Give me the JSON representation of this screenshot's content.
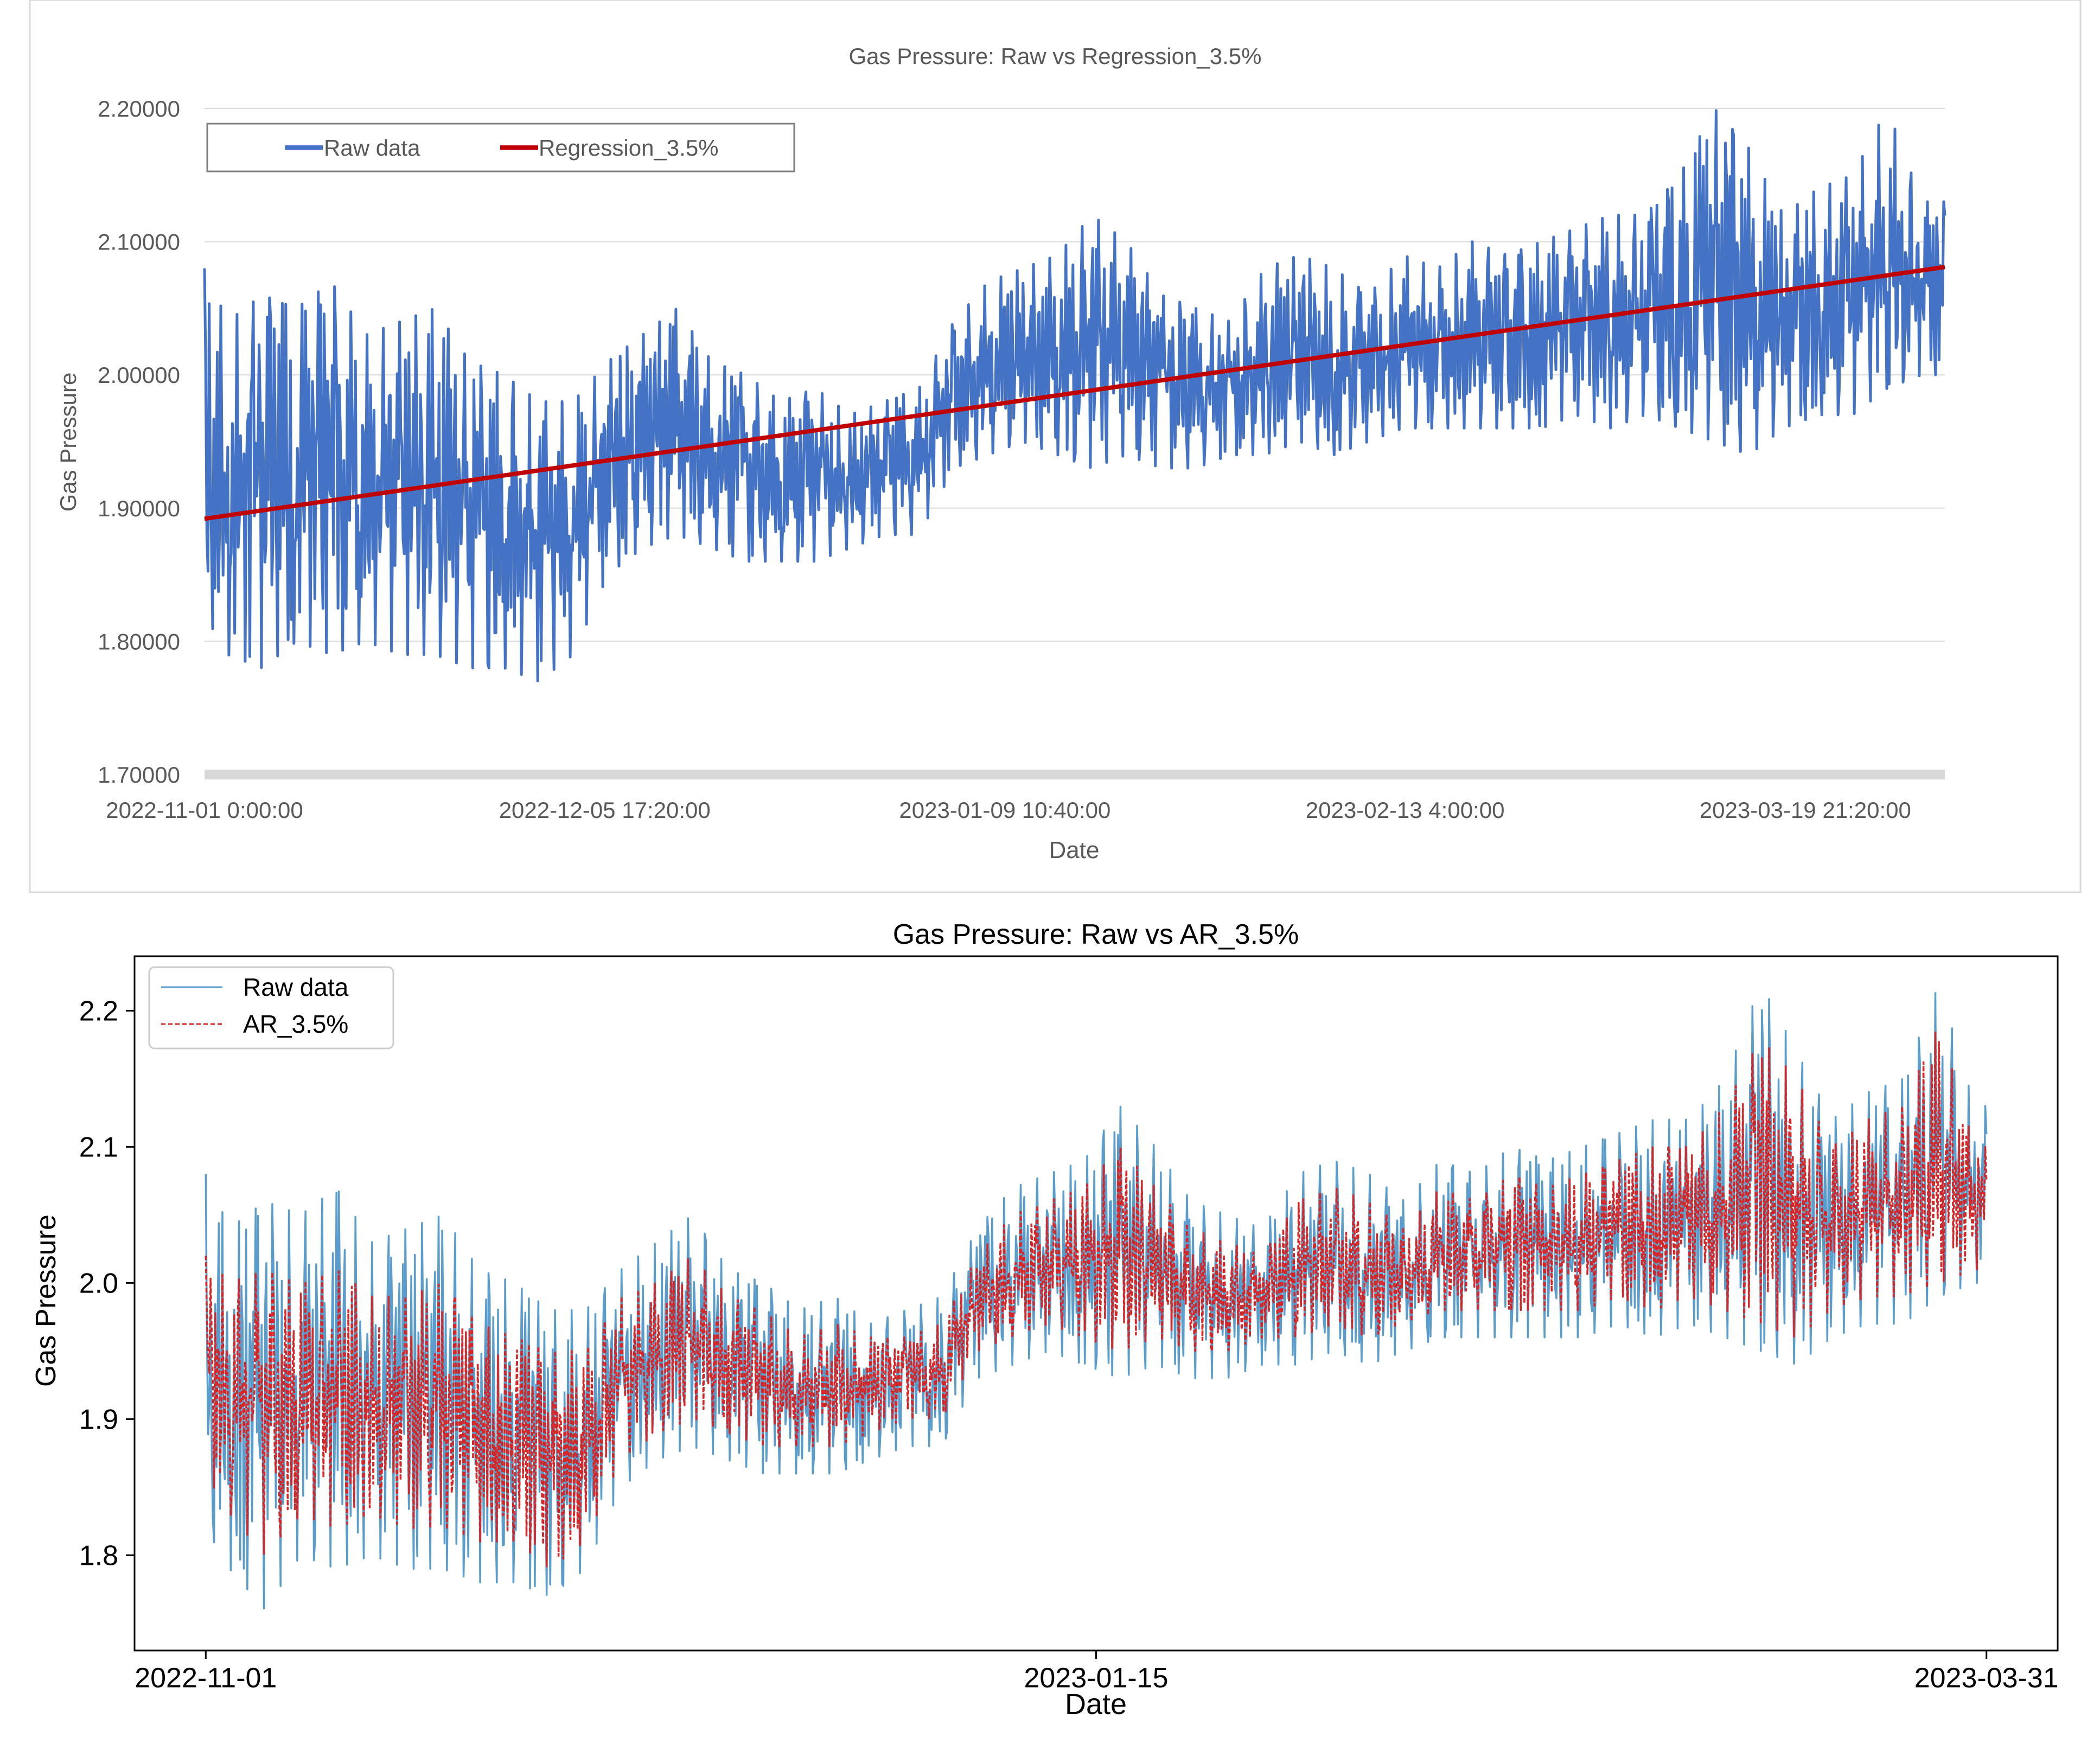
{
  "chart_data": [
    {
      "type": "line",
      "title": "Gas Pressure: Raw vs Regression_3.5%",
      "xlabel": "Date",
      "ylabel": "Gas Pressure",
      "ylim": [
        1.7,
        2.2
      ],
      "yticks": [
        "2.20000",
        "2.10000",
        "2.00000",
        "1.90000",
        "1.80000",
        "1.70000"
      ],
      "yticks_values": [
        2.2,
        2.1,
        2.0,
        1.9,
        1.8,
        1.7
      ],
      "xlim": [
        "2022-11-01 00:00",
        "2023-03-31 23:50"
      ],
      "xticks": [
        "2022-11-01 0:00:00",
        "2022-12-05 17:20:00",
        "2023-01-09 10:40:00",
        "2023-02-13 4:00:00",
        "2023-03-19 21:20:00"
      ],
      "xticks_values": [
        "2022-11-01 00:00",
        "2022-12-05 17:20",
        "2023-01-09 10:40",
        "2023-02-13 04:00",
        "2023-03-19 21:20"
      ],
      "grid": true,
      "legend": "top-left",
      "colors": {
        "raw": "#4472c4",
        "regression": "#c00000"
      },
      "series": [
        {
          "name": "Raw data",
          "x": [
            "2022-11-01",
            "2022-11-03",
            "2022-11-06",
            "2022-11-09",
            "2022-11-12",
            "2022-11-15",
            "2022-11-18",
            "2022-11-21",
            "2022-11-24",
            "2022-11-27",
            "2022-11-30",
            "2022-12-03",
            "2022-12-06",
            "2022-12-09",
            "2022-12-12",
            "2022-12-15",
            "2022-12-18",
            "2022-12-21",
            "2022-12-24",
            "2022-12-27",
            "2022-12-30",
            "2023-01-02",
            "2023-01-05",
            "2023-01-08",
            "2023-01-11",
            "2023-01-14",
            "2023-01-17",
            "2023-01-20",
            "2023-01-23",
            "2023-01-26",
            "2023-01-29",
            "2023-02-01",
            "2023-02-04",
            "2023-02-07",
            "2023-02-10",
            "2023-02-13",
            "2023-02-16",
            "2023-02-19",
            "2023-02-22",
            "2023-02-25",
            "2023-02-28",
            "2023-03-03",
            "2023-03-06",
            "2023-03-09",
            "2023-03-12",
            "2023-03-15",
            "2023-03-18",
            "2023-03-21",
            "2023-03-24",
            "2023-03-27",
            "2023-03-30"
          ],
          "upper": [
            2.08,
            2.04,
            2.06,
            2.05,
            2.07,
            2.03,
            2.04,
            2.05,
            2.01,
            2.0,
            1.98,
            1.98,
            2.01,
            2.03,
            2.05,
            2.01,
            2.0,
            1.98,
            1.99,
            1.97,
            1.98,
            1.99,
            2.04,
            2.07,
            2.08,
            2.09,
            2.12,
            2.1,
            2.06,
            2.05,
            2.04,
            2.08,
            2.09,
            2.08,
            2.06,
            2.09,
            2.08,
            2.1,
            2.09,
            2.1,
            2.11,
            2.12,
            2.12,
            2.15,
            2.2,
            2.17,
            2.12,
            2.14,
            2.15,
            2.2,
            2.13
          ],
          "lower": [
            1.82,
            1.79,
            1.78,
            1.8,
            1.79,
            1.8,
            1.79,
            1.79,
            1.78,
            1.78,
            1.77,
            1.79,
            1.85,
            1.87,
            1.88,
            1.87,
            1.86,
            1.86,
            1.86,
            1.87,
            1.88,
            1.88,
            1.93,
            1.94,
            1.95,
            1.94,
            1.93,
            1.94,
            1.93,
            1.93,
            1.94,
            1.94,
            1.95,
            1.94,
            1.95,
            1.96,
            1.96,
            1.96,
            1.96,
            1.96,
            1.97,
            1.96,
            1.97,
            1.96,
            1.95,
            1.94,
            1.96,
            1.97,
            1.97,
            1.99,
            2.0
          ]
        },
        {
          "name": "Regression_3.5%",
          "x": [
            "2022-11-01 00:00",
            "2023-03-31 23:50"
          ],
          "values": [
            1.892,
            2.081
          ]
        }
      ]
    },
    {
      "type": "line",
      "title": "Gas Pressure: Raw vs AR_3.5%",
      "xlabel": "Date",
      "ylabel": "Gas Pressure",
      "ylim": [
        1.73,
        2.24
      ],
      "yticks": [
        "2.2",
        "2.1",
        "2.0",
        "1.9",
        "1.8"
      ],
      "yticks_values": [
        2.2,
        2.1,
        2.0,
        1.9,
        1.8
      ],
      "xlim": [
        "2022-10-26",
        "2023-04-06"
      ],
      "xticks": [
        "2022-11-01",
        "2023-01-15",
        "2023-03-31"
      ],
      "xticks_values": [
        "2022-11-01",
        "2023-01-15",
        "2023-03-31"
      ],
      "grid": false,
      "legend": "top-left",
      "colors": {
        "raw": "#5a9ccb",
        "ar": "#d62728"
      },
      "series": [
        {
          "name": "Raw data",
          "x": [
            "2022-11-01",
            "2022-11-03",
            "2022-11-06",
            "2022-11-09",
            "2022-11-12",
            "2022-11-15",
            "2022-11-18",
            "2022-11-21",
            "2022-11-24",
            "2022-11-27",
            "2022-11-30",
            "2022-12-03",
            "2022-12-06",
            "2022-12-09",
            "2022-12-12",
            "2022-12-15",
            "2022-12-18",
            "2022-12-21",
            "2022-12-24",
            "2022-12-27",
            "2022-12-30",
            "2023-01-02",
            "2023-01-05",
            "2023-01-08",
            "2023-01-11",
            "2023-01-14",
            "2023-01-17",
            "2023-01-20",
            "2023-01-23",
            "2023-01-26",
            "2023-01-29",
            "2023-02-01",
            "2023-02-04",
            "2023-02-07",
            "2023-02-10",
            "2023-02-13",
            "2023-02-16",
            "2023-02-19",
            "2023-02-22",
            "2023-02-25",
            "2023-02-28",
            "2023-03-03",
            "2023-03-06",
            "2023-03-09",
            "2023-03-12",
            "2023-03-15",
            "2023-03-18",
            "2023-03-21",
            "2023-03-24",
            "2023-03-27",
            "2023-03-30"
          ],
          "upper": [
            2.08,
            2.04,
            2.06,
            2.05,
            2.07,
            2.03,
            2.04,
            2.05,
            2.01,
            2.0,
            1.98,
            1.98,
            2.01,
            2.03,
            2.05,
            2.01,
            2.0,
            1.98,
            1.99,
            1.97,
            1.98,
            1.99,
            2.04,
            2.07,
            2.08,
            2.09,
            2.13,
            2.1,
            2.06,
            2.05,
            2.04,
            2.08,
            2.09,
            2.08,
            2.06,
            2.09,
            2.08,
            2.1,
            2.09,
            2.1,
            2.11,
            2.12,
            2.12,
            2.15,
            2.22,
            2.17,
            2.12,
            2.14,
            2.15,
            2.22,
            2.13
          ],
          "lower": [
            1.82,
            1.79,
            1.76,
            1.8,
            1.79,
            1.8,
            1.79,
            1.79,
            1.78,
            1.78,
            1.77,
            1.79,
            1.85,
            1.87,
            1.88,
            1.87,
            1.86,
            1.86,
            1.86,
            1.87,
            1.88,
            1.88,
            1.93,
            1.94,
            1.95,
            1.94,
            1.93,
            1.94,
            1.93,
            1.93,
            1.94,
            1.94,
            1.95,
            1.94,
            1.95,
            1.96,
            1.96,
            1.96,
            1.96,
            1.96,
            1.97,
            1.96,
            1.97,
            1.96,
            1.95,
            1.94,
            1.96,
            1.97,
            1.97,
            1.99,
            2.0
          ]
        },
        {
          "name": "AR_3.5%",
          "x": [
            "2022-11-01",
            "2022-11-03",
            "2022-11-06",
            "2022-11-09",
            "2022-11-12",
            "2022-11-15",
            "2022-11-18",
            "2022-11-21",
            "2022-11-24",
            "2022-11-27",
            "2022-11-30",
            "2022-12-03",
            "2022-12-06",
            "2022-12-09",
            "2022-12-12",
            "2022-12-15",
            "2022-12-18",
            "2022-12-21",
            "2022-12-24",
            "2022-12-27",
            "2022-12-30",
            "2023-01-02",
            "2023-01-05",
            "2023-01-08",
            "2023-01-11",
            "2023-01-14",
            "2023-01-17",
            "2023-01-20",
            "2023-01-23",
            "2023-01-26",
            "2023-01-29",
            "2023-02-01",
            "2023-02-04",
            "2023-02-07",
            "2023-02-10",
            "2023-02-13",
            "2023-02-16",
            "2023-02-19",
            "2023-02-22",
            "2023-02-25",
            "2023-02-28",
            "2023-03-03",
            "2023-03-06",
            "2023-03-09",
            "2023-03-12",
            "2023-03-15",
            "2023-03-18",
            "2023-03-21",
            "2023-03-24",
            "2023-03-27",
            "2023-03-30"
          ],
          "upper": [
            2.02,
            2.0,
            2.01,
            2.0,
            2.01,
            1.99,
            1.99,
            2.0,
            1.97,
            1.96,
            1.95,
            1.95,
            1.99,
            2.0,
            2.02,
            1.99,
            1.98,
            1.96,
            1.97,
            1.96,
            1.96,
            1.97,
            2.02,
            2.05,
            2.06,
            2.07,
            2.1,
            2.07,
            2.04,
            2.03,
            2.02,
            2.06,
            2.07,
            2.06,
            2.04,
            2.07,
            2.06,
            2.08,
            2.07,
            2.08,
            2.09,
            2.1,
            2.1,
            2.13,
            2.18,
            2.15,
            2.1,
            2.12,
            2.13,
            2.19,
            2.1
          ],
          "lower": [
            1.86,
            1.83,
            1.8,
            1.83,
            1.82,
            1.83,
            1.82,
            1.82,
            1.81,
            1.81,
            1.79,
            1.81,
            1.87,
            1.89,
            1.9,
            1.89,
            1.88,
            1.88,
            1.88,
            1.89,
            1.9,
            1.9,
            1.95,
            1.96,
            1.97,
            1.96,
            1.95,
            1.96,
            1.95,
            1.95,
            1.96,
            1.96,
            1.97,
            1.96,
            1.97,
            1.98,
            1.98,
            1.98,
            1.98,
            1.98,
            1.99,
            1.98,
            1.99,
            1.98,
            1.97,
            1.96,
            1.98,
            1.99,
            1.99,
            2.0,
            2.01
          ]
        }
      ]
    }
  ]
}
